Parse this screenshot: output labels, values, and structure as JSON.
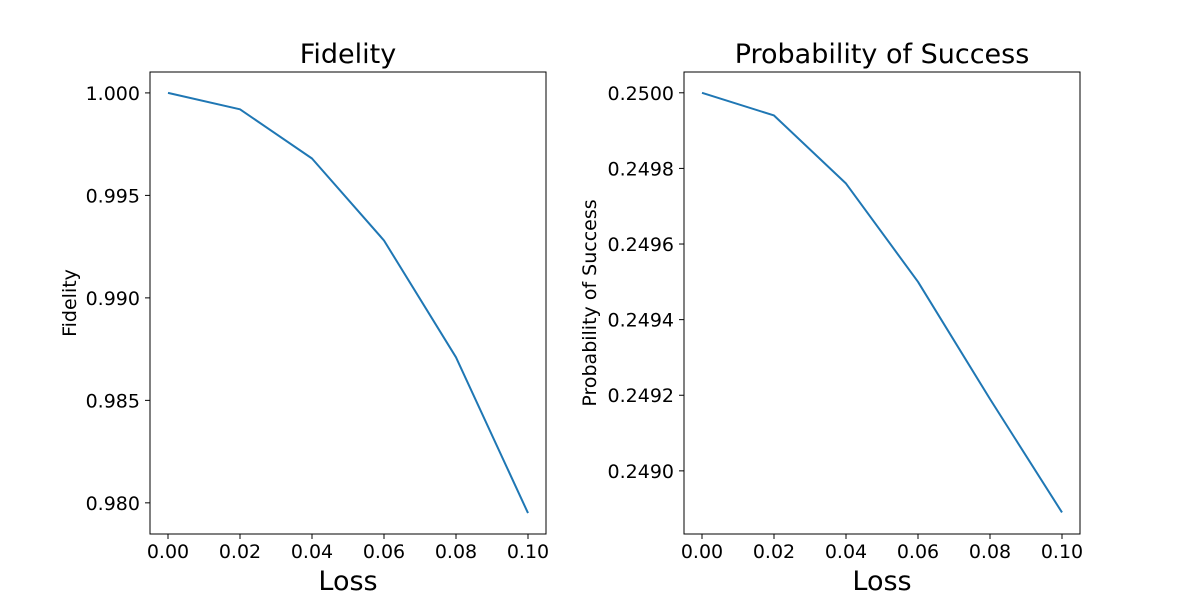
{
  "chart_data": [
    {
      "type": "line",
      "title": "Fidelity",
      "xlabel": "Loss",
      "ylabel": "Fidelity",
      "x": [
        0.0,
        0.02,
        0.04,
        0.06,
        0.08,
        0.1
      ],
      "series": [
        {
          "values": [
            1.0,
            0.9992,
            0.9968,
            0.9928,
            0.9871,
            0.9795
          ]
        }
      ],
      "xlim": [
        -0.005,
        0.105
      ],
      "ylim": [
        0.97848,
        1.00102
      ],
      "xticks": [
        0.0,
        0.02,
        0.04,
        0.06,
        0.08,
        0.1
      ],
      "xtick_labels": [
        "0.00",
        "0.02",
        "0.04",
        "0.06",
        "0.08",
        "0.10"
      ],
      "yticks": [
        0.98,
        0.985,
        0.99,
        0.995,
        1.0
      ],
      "ytick_labels": [
        "0.980",
        "0.985",
        "0.990",
        "0.995",
        "1.000"
      ],
      "grid": false,
      "line_color": "#1f77b4"
    },
    {
      "type": "line",
      "title": "Probability of Success",
      "xlabel": "Loss",
      "ylabel": "Probability of Success",
      "x": [
        0.0,
        0.02,
        0.04,
        0.06,
        0.08,
        0.1
      ],
      "series": [
        {
          "values": [
            0.25,
            0.24994,
            0.24976,
            0.2495,
            0.24919,
            0.24889
          ]
        }
      ],
      "xlim": [
        -0.005,
        0.105
      ],
      "ylim": [
        0.248833,
        0.250055
      ],
      "xticks": [
        0.0,
        0.02,
        0.04,
        0.06,
        0.08,
        0.1
      ],
      "xtick_labels": [
        "0.00",
        "0.02",
        "0.04",
        "0.06",
        "0.08",
        "0.10"
      ],
      "yticks": [
        0.249,
        0.2492,
        0.2494,
        0.2496,
        0.2498,
        0.25
      ],
      "ytick_labels": [
        "0.2490",
        "0.2492",
        "0.2494",
        "0.2496",
        "0.2498",
        "0.2500"
      ],
      "grid": false,
      "line_color": "#1f77b4"
    }
  ]
}
